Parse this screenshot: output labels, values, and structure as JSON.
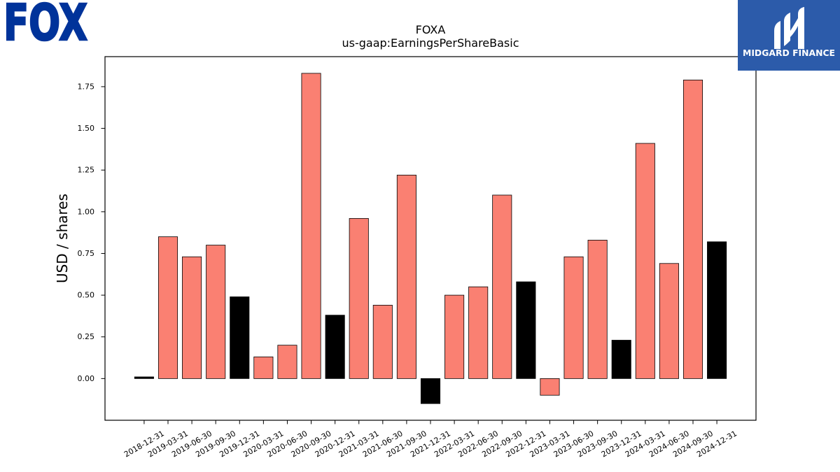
{
  "logos": {
    "left": {
      "text": "FOX",
      "color": "#00339A"
    },
    "right": {
      "text": "MIDGARD FINANCE",
      "background": "#2C5BAA",
      "foreground": "#FFFFFF",
      "icon": "midgard-m-icon"
    }
  },
  "chart_data": {
    "type": "bar",
    "title": "FOXA",
    "subtitle": "us-gaap:EarningsPerShareBasic",
    "xlabel": "",
    "ylabel": "USD / shares",
    "categories": [
      "2018-12-31",
      "2019-03-31",
      "2019-06-30",
      "2019-09-30",
      "2019-12-31",
      "2020-03-31",
      "2020-06-30",
      "2020-09-30",
      "2020-12-31",
      "2021-03-31",
      "2021-06-30",
      "2021-09-30",
      "2021-12-31",
      "2022-03-31",
      "2022-06-30",
      "2022-09-30",
      "2022-12-31",
      "2023-03-31",
      "2023-06-30",
      "2023-09-30",
      "2023-12-31",
      "2024-03-31",
      "2024-06-30",
      "2024-09-30",
      "2024-12-31"
    ],
    "values": [
      0.01,
      0.85,
      0.73,
      0.8,
      0.49,
      0.13,
      0.2,
      1.83,
      0.38,
      0.96,
      0.44,
      1.22,
      -0.15,
      0.5,
      0.55,
      1.1,
      0.58,
      -0.1,
      0.73,
      0.83,
      0.23,
      1.41,
      0.69,
      1.79,
      0.82
    ],
    "bar_colors": [
      "#000000",
      "#FA8072",
      "#FA8072",
      "#FA8072",
      "#000000",
      "#FA8072",
      "#FA8072",
      "#FA8072",
      "#000000",
      "#FA8072",
      "#FA8072",
      "#FA8072",
      "#000000",
      "#FA8072",
      "#FA8072",
      "#FA8072",
      "#000000",
      "#FA8072",
      "#FA8072",
      "#FA8072",
      "#000000",
      "#FA8072",
      "#FA8072",
      "#FA8072",
      "#000000"
    ],
    "bar_edge_color": "#000000",
    "ylim": [
      -0.25,
      1.93
    ],
    "yticks": [
      0,
      0.25,
      0.5,
      0.75,
      1,
      1.25,
      1.5,
      1.75
    ],
    "ytick_labels": [
      "0.00",
      "0.25",
      "0.50",
      "0.75",
      "1.00",
      "1.25",
      "1.50",
      "1.75"
    ],
    "grid": false,
    "legend": "none"
  }
}
